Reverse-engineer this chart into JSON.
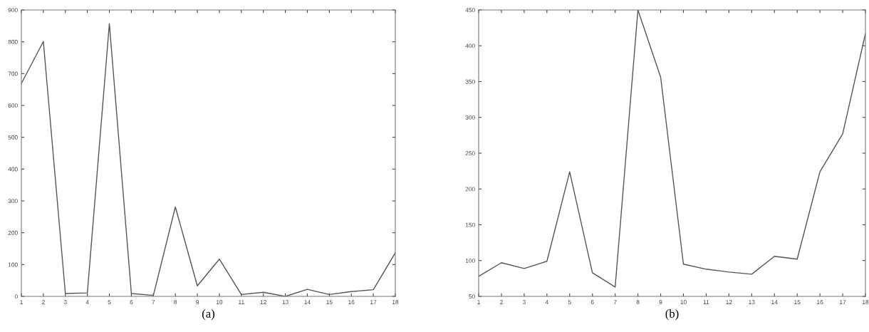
{
  "chart_data": [
    {
      "type": "line",
      "x": [
        1,
        2,
        3,
        4,
        5,
        6,
        7,
        8,
        9,
        10,
        11,
        12,
        13,
        14,
        15,
        16,
        17,
        18
      ],
      "series": [
        {
          "color": "#555555",
          "values": [
            669,
            801,
            9,
            11,
            857,
            9,
            3,
            281,
            33,
            117,
            6,
            13,
            0,
            22,
            6,
            15,
            21,
            137
          ]
        }
      ],
      "xlim": [
        1,
        18
      ],
      "xticks": [
        1,
        2,
        3,
        4,
        5,
        6,
        7,
        8,
        9,
        10,
        11,
        12,
        13,
        14,
        15,
        16,
        17,
        18
      ],
      "ylim": [
        0,
        900
      ],
      "yticks": [
        0,
        100,
        200,
        300,
        400,
        500,
        600,
        700,
        800,
        900
      ],
      "grid": false,
      "marker": "none",
      "line_style": "solid",
      "annotations": [
        "(a)"
      ]
    },
    {
      "type": "line",
      "x": [
        1,
        2,
        3,
        4,
        5,
        6,
        7,
        8,
        9,
        10,
        11,
        12,
        13,
        14,
        15,
        16,
        17,
        18
      ],
      "series": [
        {
          "color": "#555555",
          "values": [
            78,
            97,
            89,
            99,
            224,
            83,
            63,
            450,
            356,
            95,
            88,
            84,
            81,
            106,
            102,
            224,
            277,
            417
          ]
        }
      ],
      "xlim": [
        1,
        18
      ],
      "xticks": [
        1,
        2,
        3,
        4,
        5,
        6,
        7,
        8,
        9,
        10,
        11,
        12,
        13,
        14,
        15,
        16,
        17,
        18
      ],
      "ylim": [
        50,
        450
      ],
      "yticks": [
        50,
        100,
        150,
        200,
        250,
        300,
        350,
        400,
        450
      ],
      "grid": false,
      "marker": "none",
      "line_style": "solid",
      "annotations": [
        "(b)"
      ]
    }
  ]
}
